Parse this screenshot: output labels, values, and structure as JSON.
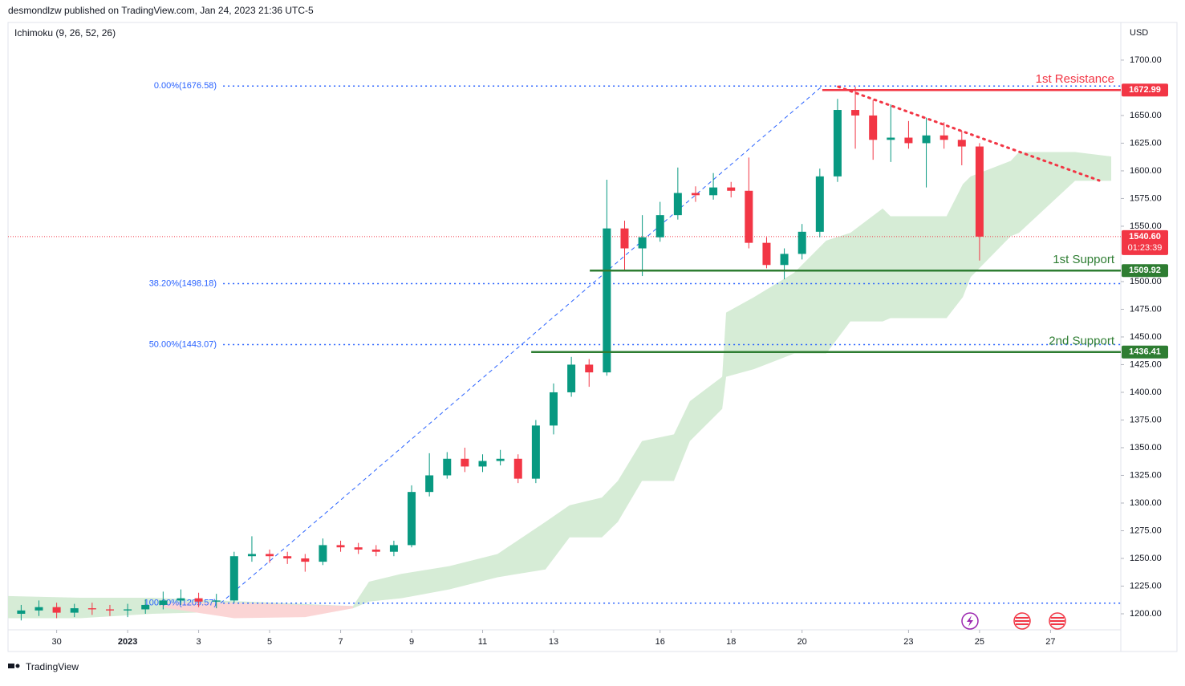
{
  "header": {
    "byline": "desmondlzw published on TradingView.com, Jan 24, 2023 21:36 UTC-5",
    "brand": "TradingView"
  },
  "chart_data": {
    "type": "candlestick",
    "indicator": "Ichimoku (9, 26, 52, 26)",
    "currency": "USD",
    "xlim": [
      -3.37,
      27.98
    ],
    "ylim": [
      1185.5,
      1734
    ],
    "xticks": [
      {
        "value": -2,
        "label": "30"
      },
      {
        "value": 0,
        "label": "2023"
      },
      {
        "value": 2,
        "label": "3"
      },
      {
        "value": 4,
        "label": "5"
      },
      {
        "value": 6,
        "label": "7"
      },
      {
        "value": 8,
        "label": "9"
      },
      {
        "value": 10,
        "label": "11"
      },
      {
        "value": 12,
        "label": "13"
      },
      {
        "value": 15,
        "label": "16"
      },
      {
        "value": 17,
        "label": "18"
      },
      {
        "value": 19,
        "label": "20"
      },
      {
        "value": 22,
        "label": "23"
      },
      {
        "value": 24,
        "label": "25"
      },
      {
        "value": 26,
        "label": "27"
      }
    ],
    "yticks": [
      {
        "value": 1200,
        "label": "1200.00"
      },
      {
        "value": 1225,
        "label": "1225.00"
      },
      {
        "value": 1250,
        "label": "1250.00"
      },
      {
        "value": 1275,
        "label": "1275.00"
      },
      {
        "value": 1300,
        "label": "1300.00"
      },
      {
        "value": 1325,
        "label": "1325.00"
      },
      {
        "value": 1350,
        "label": "1350.00"
      },
      {
        "value": 1375,
        "label": "1375.00"
      },
      {
        "value": 1400,
        "label": "1400.00"
      },
      {
        "value": 1425,
        "label": "1425.00"
      },
      {
        "value": 1450,
        "label": "1450.00"
      },
      {
        "value": 1475,
        "label": "1475.00"
      },
      {
        "value": 1500,
        "label": "1500.00"
      },
      {
        "value": 1550,
        "label": "1550.00"
      },
      {
        "value": 1575,
        "label": "1575.00"
      },
      {
        "value": 1600,
        "label": "1600.00"
      },
      {
        "value": 1625,
        "label": "1625.00"
      },
      {
        "value": 1650,
        "label": "1650.00"
      },
      {
        "value": 1700,
        "label": "1700.00"
      }
    ],
    "grid": false,
    "up_color": "#089981",
    "down_color": "#f23645",
    "candles": {
      "x": [
        -3,
        -2.5,
        -2,
        -1.5,
        -1,
        -0.5,
        0,
        0.5,
        1,
        1.5,
        2,
        2.5,
        3,
        3.5,
        4,
        4.5,
        5,
        5.5,
        6,
        6.5,
        7,
        7.5,
        8,
        8.5,
        9,
        9.5,
        10,
        10.5,
        11,
        11.5,
        12,
        12.5,
        13,
        13.5,
        14,
        14.5,
        15,
        15.5,
        16,
        16.5,
        17,
        17.5,
        18,
        18.5,
        19,
        19.5,
        20,
        20.5,
        21,
        21.5,
        22,
        22.5,
        23,
        23.5,
        24
      ],
      "open": [
        1200,
        1203,
        1206,
        1201,
        1205,
        1204,
        1203,
        1204,
        1208,
        1212,
        1214,
        1211,
        1212,
        1252,
        1254,
        1252,
        1250,
        1247,
        1262,
        1260,
        1258,
        1256,
        1262,
        1310,
        1325,
        1340,
        1333,
        1338,
        1340,
        1322,
        1370,
        1400,
        1425,
        1418,
        1548,
        1530,
        1540,
        1560,
        1580,
        1578,
        1585,
        1582,
        1535,
        1515,
        1525,
        1545,
        1595,
        1655,
        1650,
        1628,
        1630,
        1625,
        1632,
        1628,
        1622
      ],
      "high": [
        1208,
        1212,
        1210,
        1209,
        1210,
        1208,
        1209,
        1213,
        1220,
        1222,
        1219,
        1218,
        1256,
        1270,
        1258,
        1256,
        1254,
        1268,
        1266,
        1264,
        1262,
        1266,
        1316,
        1345,
        1346,
        1350,
        1344,
        1348,
        1344,
        1375,
        1408,
        1432,
        1430,
        1592,
        1555,
        1560,
        1572,
        1603,
        1586,
        1598,
        1590,
        1612,
        1540,
        1530,
        1552,
        1602,
        1665,
        1676,
        1664,
        1660,
        1645,
        1648,
        1644,
        1636,
        1625
      ],
      "low": [
        1194,
        1198,
        1196,
        1197,
        1199,
        1198,
        1197,
        1200,
        1204,
        1208,
        1206,
        1205,
        1210,
        1247,
        1246,
        1245,
        1238,
        1244,
        1256,
        1254,
        1252,
        1252,
        1260,
        1306,
        1322,
        1328,
        1328,
        1334,
        1318,
        1318,
        1362,
        1396,
        1405,
        1415,
        1510,
        1505,
        1536,
        1556,
        1572,
        1574,
        1576,
        1530,
        1512,
        1502,
        1520,
        1540,
        1590,
        1620,
        1610,
        1608,
        1620,
        1585,
        1620,
        1605,
        1519
      ],
      "close": [
        1203,
        1206,
        1201,
        1205,
        1204,
        1203,
        1204,
        1208,
        1212,
        1214,
        1211,
        1212,
        1252,
        1254,
        1252,
        1250,
        1247,
        1262,
        1260,
        1258,
        1256,
        1262,
        1310,
        1325,
        1340,
        1333,
        1338,
        1340,
        1322,
        1370,
        1400,
        1425,
        1418,
        1548,
        1530,
        1540,
        1560,
        1580,
        1578,
        1585,
        1582,
        1535,
        1515,
        1525,
        1545,
        1595,
        1655,
        1650,
        1628,
        1630,
        1625,
        1632,
        1628,
        1622,
        1540.6
      ]
    },
    "cloud_bull": {
      "color": "#d6ecd6",
      "x": [
        -3.37,
        -1.33,
        0.7,
        6.35,
        6.8,
        7.71,
        9.06,
        10.42,
        11.77,
        12.45,
        13.36,
        13.81,
        14.49,
        15.39,
        15.84,
        16.75,
        16.86,
        17.65,
        18.78,
        19.68,
        20.36,
        21.27,
        21.49,
        23.07,
        23.53,
        23.75,
        24.88,
        25.11,
        26.69,
        27.71
      ],
      "upper": [
        1216,
        1214.5,
        1214.5,
        1207,
        1229,
        1236,
        1243,
        1254,
        1283,
        1298,
        1305,
        1320,
        1356,
        1362,
        1392,
        1414,
        1472,
        1486,
        1508,
        1537,
        1544,
        1566,
        1559,
        1559,
        1588,
        1595,
        1609,
        1617,
        1617,
        1613
      ],
      "lower": [
        1196,
        1196,
        1200,
        1205,
        1211,
        1214,
        1222,
        1233,
        1240,
        1269,
        1269,
        1283,
        1320,
        1320,
        1356,
        1385,
        1414,
        1421,
        1435,
        1435,
        1464,
        1464,
        1467,
        1467,
        1486,
        1504,
        1541,
        1544,
        1591,
        1591
      ]
    },
    "cloud_bear": {
      "color": "#fbd5d5",
      "x": [
        0.93,
        3,
        5,
        6.35
      ],
      "upper": [
        1210,
        1210,
        1208,
        1207
      ],
      "lower": [
        1206,
        1196,
        1197,
        1205
      ]
    },
    "fib_start": 2.69,
    "fib_levels": [
      {
        "label": "0.00%(1676.58)",
        "value": 1676.58
      },
      {
        "label": "38.20%(1498.18)",
        "value": 1498.18
      },
      {
        "label": "50.00%(1443.07)",
        "value": 1443.07
      },
      {
        "label": "100.00%(1209.57)",
        "value": 1209.57
      }
    ],
    "fib_diagonal": {
      "x": [
        2.62,
        19.57
      ],
      "y": [
        1209.57,
        1676.58
      ]
    },
    "trendline": {
      "x": [
        20.02,
        27.37
      ],
      "y": [
        1676,
        1591.3
      ],
      "color": "#f23645"
    },
    "levels": [
      {
        "name": "1st Resistance",
        "value": 1672.99,
        "color": "#f23645",
        "start": 19.57
      },
      {
        "name": "1st Support",
        "value": 1509.92,
        "color": "#2e7d32",
        "start": 13.02
      },
      {
        "name": "2nd Support",
        "value": 1436.41,
        "color": "#2e7d32",
        "start": 11.37
      }
    ],
    "last_price": {
      "value": 1540.6,
      "label": "1540.60",
      "countdown": "01:23:39",
      "color": "#f23645"
    }
  }
}
